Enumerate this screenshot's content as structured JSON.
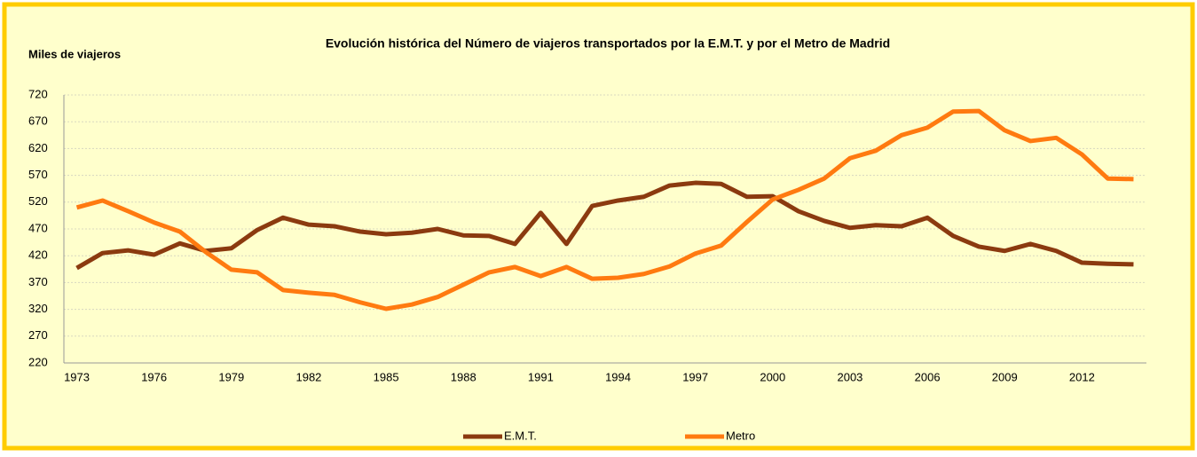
{
  "chart_data": {
    "type": "line",
    "title": "Evolución histórica del Número de viajeros transportados por la E.M.T. y por el Metro de Madrid",
    "y_label": "Miles de viajeros",
    "categories": [
      "1973",
      null,
      null,
      "1976",
      null,
      null,
      "1979",
      null,
      null,
      "1982",
      null,
      null,
      "1985",
      null,
      null,
      "1988",
      null,
      null,
      "1991",
      null,
      null,
      "1994",
      null,
      null,
      "1997",
      null,
      null,
      "2000",
      null,
      null,
      "2003",
      null,
      null,
      "2006",
      null,
      null,
      "2009",
      null,
      null,
      "2012",
      null,
      null
    ],
    "series": [
      {
        "name": "E.M.T.",
        "color": "#8b3a0f",
        "values": [
          397,
          425,
          430,
          422,
          443,
          429,
          434,
          468,
          491,
          478,
          475,
          465,
          460,
          463,
          470,
          458,
          457,
          442,
          500,
          442,
          513,
          523,
          530,
          551,
          556,
          554,
          530,
          531,
          503,
          485,
          472,
          477,
          475,
          491,
          457,
          437,
          429,
          442,
          429,
          407,
          405,
          404
        ]
      },
      {
        "name": "Metro",
        "color": "#ff7a10",
        "values": [
          510,
          523,
          503,
          482,
          465,
          427,
          394,
          389,
          356,
          351,
          347,
          333,
          321,
          329,
          343,
          366,
          389,
          399,
          382,
          399,
          377,
          379,
          386,
          400,
          424,
          439,
          483,
          525,
          543,
          564,
          602,
          616,
          645,
          659,
          689,
          690,
          654,
          634,
          640,
          609,
          564,
          563
        ]
      }
    ],
    "ylim": [
      220,
      720
    ],
    "yticks": [
      220,
      270,
      320,
      370,
      420,
      470,
      520,
      570,
      620,
      670,
      720
    ],
    "grid": true,
    "legend": "bottom"
  }
}
